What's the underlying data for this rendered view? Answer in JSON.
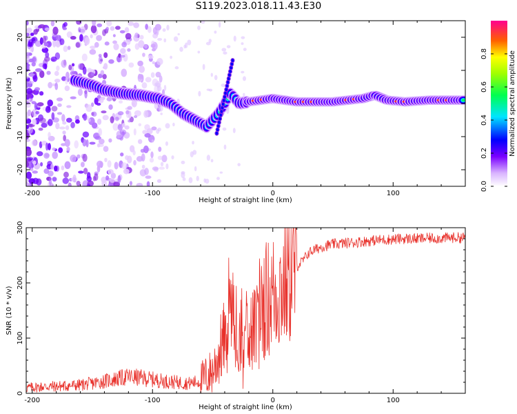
{
  "title": "S119.2023.018.11.43.E30",
  "chart_data": [
    {
      "type": "heatmap",
      "xlabel": "Height of straight line (km)",
      "ylabel": "Frequency (Hz)",
      "xlim": [
        -205,
        160
      ],
      "ylim": [
        -25,
        25
      ],
      "xticks": [
        -200,
        -100,
        0,
        100
      ],
      "yticks": [
        -20,
        -10,
        0,
        10,
        20
      ],
      "colorbar": {
        "label": "Normalized spectral amplitude",
        "range": [
          0,
          1
        ],
        "ticks": [
          0.0,
          0.2,
          0.4,
          0.6,
          0.8
        ]
      },
      "dominant_frequency_track": [
        {
          "x": -165,
          "y": 7.0
        },
        {
          "x": -150,
          "y": 5.5
        },
        {
          "x": -140,
          "y": 4.0
        },
        {
          "x": -125,
          "y": 3.0
        },
        {
          "x": -110,
          "y": 2.5
        },
        {
          "x": -95,
          "y": 1.5
        },
        {
          "x": -85,
          "y": 0.0
        },
        {
          "x": -75,
          "y": -3.0
        },
        {
          "x": -65,
          "y": -5.0
        },
        {
          "x": -55,
          "y": -7.0
        },
        {
          "x": -45,
          "y": -3.0
        },
        {
          "x": -35,
          "y": 3.0
        },
        {
          "x": -28,
          "y": 0.0
        },
        {
          "x": -20,
          "y": 0.5
        },
        {
          "x": 0,
          "y": 1.5
        },
        {
          "x": 20,
          "y": 0.5
        },
        {
          "x": 50,
          "y": 0.5
        },
        {
          "x": 75,
          "y": 1.5
        },
        {
          "x": 85,
          "y": 2.5
        },
        {
          "x": 95,
          "y": 1.0
        },
        {
          "x": 110,
          "y": 0.5
        },
        {
          "x": 130,
          "y": 1.0
        },
        {
          "x": 160,
          "y": 1.0
        }
      ]
    },
    {
      "type": "line",
      "xlabel": "Height of straight line (km)",
      "ylabel": "SNR (10 * v/v)",
      "xlim": [
        -205,
        160
      ],
      "ylim": [
        0,
        300
      ],
      "xticks": [
        -200,
        -100,
        0,
        100
      ],
      "yticks": [
        0,
        100,
        200,
        300
      ],
      "color": "#e8302a",
      "series": [
        {
          "x": [
            -205,
            -190,
            -175,
            -160,
            -150,
            -140,
            -130,
            -120,
            -110,
            -100,
            -90,
            -80,
            -70,
            -60,
            -50,
            -45,
            -40,
            -35,
            -30,
            -25,
            -20,
            -15,
            -10,
            -5,
            0,
            5,
            10,
            15,
            20,
            25,
            30,
            40,
            50,
            60,
            70,
            80,
            90,
            100,
            110,
            120,
            130,
            140,
            150,
            160
          ],
          "y": [
            10,
            12,
            13,
            15,
            18,
            22,
            26,
            30,
            28,
            25,
            22,
            20,
            18,
            22,
            40,
            70,
            100,
            150,
            130,
            110,
            130,
            110,
            160,
            170,
            180,
            190,
            200,
            215,
            230,
            240,
            255,
            265,
            270,
            272,
            274,
            276,
            278,
            279,
            280,
            280,
            281,
            281,
            282,
            282
          ]
        }
      ]
    }
  ]
}
